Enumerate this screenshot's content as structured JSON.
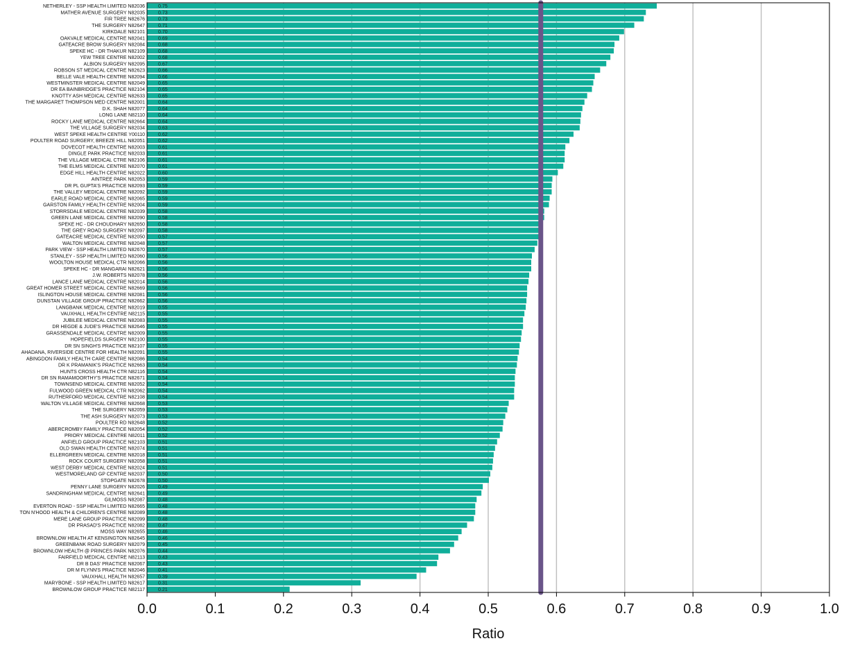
{
  "chart_data": {
    "type": "bar",
    "orientation": "horizontal",
    "title": "",
    "xlabel": "Ratio",
    "ylabel": "",
    "xlim": [
      0,
      1
    ],
    "x_ticks": [
      "0.0",
      "0.1",
      "0.2",
      "0.3",
      "0.4",
      "0.5",
      "0.6",
      "0.7",
      "0.8",
      "0.9",
      "1.0"
    ],
    "grid": "vertical",
    "bar_color": "#10ae9a",
    "reference_line": {
      "value": 0.577,
      "color": "#6a5589"
    },
    "categories": [
      "NETHERLEY - SSP HEALTH LIMITED N82036",
      "MATHER AVENUE SURGERY N82035",
      "FIR TREE N82676",
      "THE SURGERY N82647",
      "KIRKDALE N82101",
      "OAKVALE MEDICAL CENTRE N82041",
      "GATEACRE BROW SURGERY N82084",
      "SPEKE HC - DR THAKUR N82109",
      "YEW TREE CENTRE N82002",
      "ALBION SURGERY N82095",
      "ROBSON ST MEDICAL CENTRE N82623",
      "BELLE VALE HEALTH CENTRE N82094",
      "WESTMINSTER MEDICAL CENTRE N82049",
      "DR EA BAINBRIDGE'S PRACTICE N82104",
      "KNOTTY ASH MEDICAL CENTRE N82633",
      "THE MARGARET THOMPSON MED CENTRE N82001",
      "D.K. SHAH N82077",
      "LONG LANE N82110",
      "ROCKY LANE MEDICAL CENTRE N82664",
      "THE VILLAGE SURGERY N82034",
      "WEST SPEKE HEALTH CENTRE Y00110",
      "POULTER ROAD SURGERY, BREEZE HILL N82051",
      "DOVECOT HEALTH CENTRE N82003",
      "DINGLE PARK PRACTICE N82033",
      "THE VILLAGE MEDICAL CTRE N82106",
      "THE ELMS MEDICAL CENTRE N82070",
      "EDGE HILL HEALTH CENTRE N82022",
      "AINTREE PARK N82053",
      "DR PL GUPTA'S PRACTICE N82093",
      "THE VALLEY MEDICAL CENTRE N82092",
      "EARLE ROAD MEDICAL CENTRE N82065",
      "GARSTON FAMILY HEALTH CENTRE N82004",
      "STORRSDALE MEDICAL CENTRE N82039",
      "GREEN LANE MEDICAL CENTRE N82090",
      "SPEKE HC - DR CHOUDHARY N82650",
      "THE GREY ROAD SURGERY N82097",
      "GATEACRE MEDICAL CENTRE N82050",
      "WALTON MEDICAL CENTRE N82048",
      "PARK VIEW - SSP HEALTH LIMITED N82670",
      "STANLEY - SSP HEALTH LIMITED N82060",
      "WOOLTON HOUSE MEDICAL CTR N82066",
      "SPEKE HC - DR MANGARAI N82621",
      "J.W. ROBERTS N82078",
      "LANCE LANE MEDICAL CENTRE N82014",
      "GREAT HOMER STREET MEDICAL CENTRE N82669",
      "ISLINGTON HOUSE MEDICAL CENTRE N82081",
      "DUNSTAN VILLAGE GROUP PRACTICE N82662",
      "LANGBANK MEDICAL CENTRE N82019",
      "VAUXHALL HEALTH CENTRE N82115",
      "JUBILEE MEDICAL CENTRE N82083",
      "DR HEGDE & JUDE'S PRACTICE N82646",
      "GRASSENDALE MEDICAL CENTRE N82009",
      "HOPEFIELDS SURGERY N82100",
      "DR SN SINGH'S PRACTICE N82107",
      "AHADANA, RIVERSIDE CENTRE FOR HEALTH N82091",
      "ABINGDON FAMILY HEALTH CARE CENTRE N82086",
      "DR K PRAMANIK'S PRACTICE N82663",
      "HUNTS CROSS HEALTH CTR N82116",
      "DR SN RAMAMOORTHY'S PRACTICE N82671",
      "TOWNSEND MEDICAL CENTRE N82052",
      "FULWOOD GREEN MEDICAL CTR N82062",
      "RUTHERFORD MEDICAL CENTRE N82108",
      "WALTON VILLAGE MEDICAL CENTRE N82668",
      "THE SURGERY N82059",
      "THE ASH SURGERY N82073",
      "POULTER RD N82648",
      "ABERCROMBY FAMILY PRACTICE N82054",
      "PRIORY MEDICAL CENTRE N82011",
      "ANFIELD GROUP PRACTICE N82103",
      "OLD SWAN HEALTH CENTRE N82074",
      "ELLERGREEN MEDICAL CENTRE N82018",
      "ROCK COURT SURGERY N82058",
      "WEST DERBY MEDICAL CENTRE N82024",
      "WESTMORELAND GP CENTRE N82037",
      "STOPGATE N82678",
      "PENNY LANE SURGERY N82026",
      "SANDRINGHAM MEDICAL CENTRE N82641",
      "GILMOSS N82087",
      "EVERTON ROAD - SSP HEALTH LIMITED N82665",
      "TON N'HOOD HEALTH & CHILDREN'S CENTRE N82089",
      "MERE LANE GROUP PRACTICE N82099",
      "DR PRASAD'S PRACTICE N82082",
      "MOSS WAY N82655",
      "BROWNLOW HEALTH AT KENSINGTON N82645",
      "GREENBANK ROAD SURGERY N82079",
      "BROWNLOW HEALTH  @ PRINCES PARK N82076",
      "FAIRFIELD MEDICAL CENTRE N82113",
      "DR B DAS' PRACTICE N82067",
      "DR M FLYNN'S PRACTICE N82046",
      "VAUXHALL HEALTH N82657",
      "MARYBONE - SSP HEALTH LIMITED N82617",
      "BROWNLOW GROUP PRACTICE N82117"
    ],
    "values": [
      0.747,
      0.731,
      0.728,
      0.714,
      0.699,
      0.692,
      0.685,
      0.684,
      0.679,
      0.673,
      0.664,
      0.656,
      0.654,
      0.652,
      0.645,
      0.641,
      0.638,
      0.636,
      0.635,
      0.634,
      0.625,
      0.619,
      0.613,
      0.612,
      0.612,
      0.61,
      0.602,
      0.594,
      0.593,
      0.593,
      0.59,
      0.589,
      0.582,
      0.582,
      0.576,
      0.576,
      0.574,
      0.572,
      0.568,
      0.564,
      0.563,
      0.563,
      0.56,
      0.559,
      0.557,
      0.557,
      0.556,
      0.555,
      0.553,
      0.551,
      0.551,
      0.549,
      0.548,
      0.546,
      0.545,
      0.543,
      0.542,
      0.54,
      0.539,
      0.539,
      0.538,
      0.538,
      0.53,
      0.528,
      0.525,
      0.522,
      0.521,
      0.517,
      0.513,
      0.51,
      0.508,
      0.507,
      0.506,
      0.503,
      0.501,
      0.492,
      0.49,
      0.483,
      0.481,
      0.481,
      0.479,
      0.469,
      0.461,
      0.456,
      0.45,
      0.444,
      0.427,
      0.425,
      0.409,
      0.395,
      0.313,
      0.209
    ],
    "value_labels": [
      "0.75",
      "0.73",
      "0.73",
      "0.71",
      "0.70",
      "0.69",
      "0.68",
      "0.68",
      "0.68",
      "0.67",
      "0.66",
      "0.66",
      "0.65",
      "0.65",
      "0.65",
      "0.64",
      "0.64",
      "0.64",
      "0.64",
      "0.63",
      "0.62",
      "0.62",
      "0.61",
      "0.61",
      "0.61",
      "0.61",
      "0.60",
      "0.59",
      "0.59",
      "0.59",
      "0.59",
      "0.59",
      "0.58",
      "0.58",
      "0.58",
      "0.58",
      "0.57",
      "0.57",
      "0.57",
      "0.56",
      "0.56",
      "0.56",
      "0.56",
      "0.56",
      "0.56",
      "0.56",
      "0.56",
      "0.55",
      "0.55",
      "0.55",
      "0.55",
      "0.55",
      "0.55",
      "0.55",
      "0.55",
      "0.54",
      "0.54",
      "0.54",
      "0.54",
      "0.54",
      "0.54",
      "0.54",
      "0.53",
      "0.53",
      "0.53",
      "0.52",
      "0.52",
      "0.52",
      "0.51",
      "0.51",
      "0.51",
      "0.51",
      "0.51",
      "0.50",
      "0.50",
      "0.49",
      "0.49",
      "0.48",
      "0.48",
      "0.48",
      "0.48",
      "0.47",
      "0.46",
      "0.46",
      "0.45",
      "0.44",
      "0.43",
      "0.43",
      "0.41",
      "0.39",
      "0.31",
      "0.21"
    ]
  }
}
